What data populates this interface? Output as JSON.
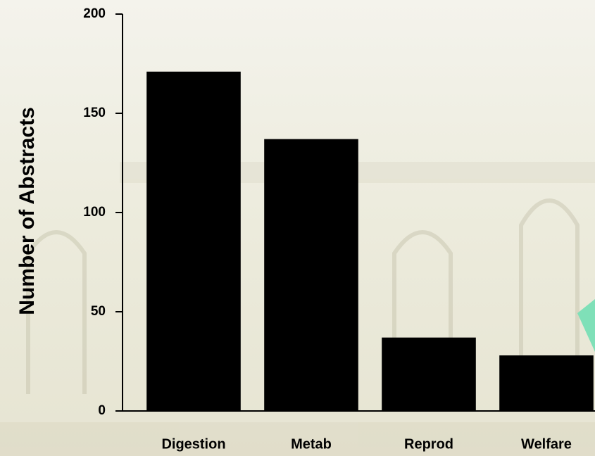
{
  "chart_data": {
    "type": "bar",
    "y_label": "Number of Abstracts",
    "categories": [
      "Digestion",
      "Metab",
      "Reprod",
      "Welfare"
    ],
    "values": [
      171,
      137,
      37,
      28
    ],
    "color": "#000000",
    "ylim": [
      0,
      200
    ],
    "yticks": [
      0,
      50,
      100,
      150,
      200
    ],
    "grid": false
  }
}
